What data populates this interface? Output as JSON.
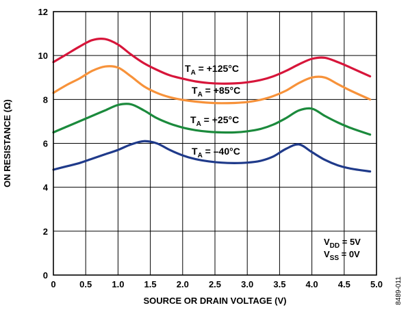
{
  "chart_data": {
    "type": "line",
    "xlabel": "SOURCE OR DRAIN VOLTAGE (V)",
    "ylabel": "ON RESISTANCE (Ω)",
    "xlim": [
      0,
      5.0
    ],
    "ylim": [
      0,
      12
    ],
    "x_ticks": [
      "0",
      "0.5",
      "1.0",
      "1.5",
      "2.0",
      "2.5",
      "3.0",
      "3.5",
      "4.0",
      "4.5",
      "5.0"
    ],
    "y_ticks": [
      "0",
      "2",
      "4",
      "6",
      "8",
      "10",
      "12"
    ],
    "grid": true,
    "series": [
      {
        "name": "+125°C",
        "color": "#d7153a",
        "x": [
          0,
          0.2,
          0.4,
          0.6,
          0.8,
          1.0,
          1.2,
          1.4,
          1.6,
          1.8,
          2.0,
          2.2,
          2.4,
          2.6,
          2.8,
          3.0,
          3.2,
          3.4,
          3.6,
          3.8,
          4.0,
          4.2,
          4.4,
          4.6,
          4.9
        ],
        "y": [
          9.7,
          10.05,
          10.4,
          10.7,
          10.75,
          10.5,
          10.05,
          9.65,
          9.35,
          9.1,
          8.95,
          8.82,
          8.75,
          8.72,
          8.73,
          8.78,
          8.88,
          9.05,
          9.3,
          9.6,
          9.85,
          9.9,
          9.7,
          9.45,
          9.05
        ]
      },
      {
        "name": "+85°C",
        "color": "#f7923a",
        "x": [
          0,
          0.2,
          0.4,
          0.6,
          0.8,
          1.0,
          1.2,
          1.4,
          1.6,
          1.8,
          2.0,
          2.2,
          2.4,
          2.6,
          2.8,
          3.0,
          3.2,
          3.4,
          3.6,
          3.8,
          4.0,
          4.2,
          4.4,
          4.6,
          4.9
        ],
        "y": [
          8.3,
          8.65,
          8.95,
          9.3,
          9.5,
          9.45,
          9.05,
          8.6,
          8.3,
          8.1,
          7.98,
          7.9,
          7.85,
          7.83,
          7.84,
          7.88,
          7.98,
          8.15,
          8.4,
          8.75,
          9.0,
          9.0,
          8.7,
          8.4,
          8.0
        ]
      },
      {
        "name": "+25°C",
        "color": "#1b8a3c",
        "x": [
          0,
          0.2,
          0.4,
          0.6,
          0.8,
          1.0,
          1.2,
          1.4,
          1.6,
          1.8,
          2.0,
          2.2,
          2.4,
          2.6,
          2.8,
          3.0,
          3.2,
          3.4,
          3.6,
          3.8,
          4.0,
          4.2,
          4.4,
          4.6,
          4.9
        ],
        "y": [
          6.5,
          6.75,
          7.0,
          7.25,
          7.5,
          7.75,
          7.78,
          7.5,
          7.15,
          6.9,
          6.72,
          6.6,
          6.53,
          6.5,
          6.5,
          6.55,
          6.65,
          6.85,
          7.15,
          7.5,
          7.58,
          7.25,
          6.95,
          6.7,
          6.4
        ]
      },
      {
        "name": "–40°C",
        "color": "#1f3a8a",
        "x": [
          0,
          0.2,
          0.4,
          0.6,
          0.8,
          1.0,
          1.2,
          1.4,
          1.6,
          1.8,
          2.0,
          2.2,
          2.4,
          2.6,
          2.8,
          3.0,
          3.2,
          3.4,
          3.6,
          3.8,
          4.0,
          4.2,
          4.4,
          4.6,
          4.9
        ],
        "y": [
          4.8,
          4.95,
          5.1,
          5.3,
          5.5,
          5.7,
          5.95,
          6.1,
          6.0,
          5.7,
          5.45,
          5.28,
          5.18,
          5.12,
          5.1,
          5.12,
          5.2,
          5.4,
          5.75,
          5.95,
          5.6,
          5.25,
          5.0,
          4.85,
          4.72
        ]
      }
    ],
    "series_labels": [
      {
        "prefix": "T",
        "sub": "A",
        "rest": " = +125°C"
      },
      {
        "prefix": "T",
        "sub": "A",
        "rest": " = +85°C"
      },
      {
        "prefix": "T",
        "sub": "A",
        "rest": " = +25°C"
      },
      {
        "prefix": "T",
        "sub": "A",
        "rest": " = –40°C"
      }
    ],
    "annotations": [
      {
        "prefix": "V",
        "sub": "DD",
        "rest": " = 5V"
      },
      {
        "prefix": "V",
        "sub": "SS",
        "rest": " = 0V"
      }
    ],
    "figure_id": "8489-011"
  }
}
